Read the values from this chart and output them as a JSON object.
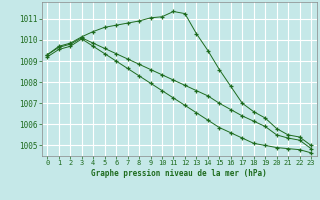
{
  "title": "Graphe pression niveau de la mer (hPa)",
  "background_color": "#c5e8e8",
  "grid_color": "#ffffff",
  "line_color": "#1e6b1e",
  "ylim": [
    1004.5,
    1011.8
  ],
  "xlim": [
    -0.5,
    23.5
  ],
  "yticks": [
    1005,
    1006,
    1007,
    1008,
    1009,
    1010,
    1011
  ],
  "xticks": [
    0,
    1,
    2,
    3,
    4,
    5,
    6,
    7,
    8,
    9,
    10,
    11,
    12,
    13,
    14,
    15,
    16,
    17,
    18,
    19,
    20,
    21,
    22,
    23
  ],
  "series1": {
    "x": [
      0,
      1,
      2,
      3,
      4,
      5,
      6,
      7,
      8,
      9,
      10,
      11,
      12,
      13,
      14,
      15,
      16,
      17,
      18,
      19,
      20,
      21,
      22,
      23
    ],
    "y": [
      1009.3,
      1009.7,
      1009.85,
      1010.15,
      1010.4,
      1010.6,
      1010.7,
      1010.8,
      1010.9,
      1011.05,
      1011.1,
      1011.35,
      1011.25,
      1010.3,
      1009.5,
      1008.6,
      1007.8,
      1007.0,
      1006.6,
      1006.3,
      1005.8,
      1005.5,
      1005.4,
      1005.0
    ]
  },
  "series2": {
    "x": [
      0,
      1,
      2,
      3,
      4,
      5,
      6,
      7,
      8,
      9,
      10,
      11,
      12,
      13,
      14,
      15,
      16,
      17,
      18,
      19,
      20,
      21,
      22,
      23
    ],
    "y": [
      1009.3,
      1009.65,
      1009.8,
      1010.1,
      1009.85,
      1009.6,
      1009.35,
      1009.1,
      1008.85,
      1008.6,
      1008.35,
      1008.1,
      1007.85,
      1007.6,
      1007.35,
      1007.0,
      1006.7,
      1006.4,
      1006.15,
      1005.9,
      1005.5,
      1005.35,
      1005.25,
      1004.85
    ]
  },
  "series3": {
    "x": [
      0,
      1,
      2,
      3,
      4,
      5,
      6,
      7,
      8,
      9,
      10,
      11,
      12,
      13,
      14,
      15,
      16,
      17,
      18,
      19,
      20,
      21,
      22,
      23
    ],
    "y": [
      1009.2,
      1009.55,
      1009.7,
      1010.05,
      1009.7,
      1009.35,
      1009.0,
      1008.65,
      1008.3,
      1007.95,
      1007.6,
      1007.25,
      1006.9,
      1006.55,
      1006.2,
      1005.85,
      1005.6,
      1005.35,
      1005.1,
      1005.0,
      1004.9,
      1004.85,
      1004.8,
      1004.65
    ]
  }
}
